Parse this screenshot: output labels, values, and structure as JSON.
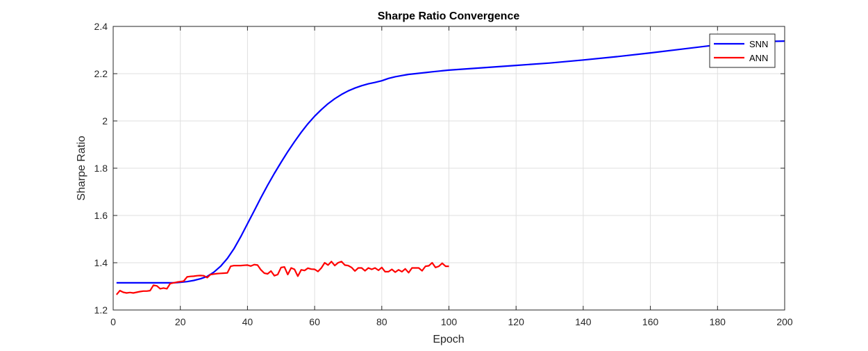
{
  "chart_data": {
    "type": "line",
    "title": "Sharpe Ratio Convergence",
    "xlabel": "Epoch",
    "ylabel": "Sharpe Ratio",
    "xlim": [
      0,
      200
    ],
    "ylim": [
      1.2,
      2.4
    ],
    "xticks": [
      0,
      20,
      40,
      60,
      80,
      100,
      120,
      140,
      160,
      180,
      200
    ],
    "yticks": [
      1.2,
      1.4,
      1.6,
      1.8,
      2.0,
      2.2,
      2.4
    ],
    "xtick_labels": [
      "0",
      "20",
      "40",
      "60",
      "80",
      "100",
      "120",
      "140",
      "160",
      "180",
      "200"
    ],
    "ytick_labels": [
      "1.2",
      "1.4",
      "1.6",
      "1.8",
      "2",
      "2.2",
      "2.4"
    ],
    "grid": true,
    "legend_position": "top-right",
    "series": [
      {
        "name": "SNN",
        "color": "#0000ff",
        "x": [
          1,
          5,
          10,
          15,
          18,
          20,
          22,
          24,
          26,
          28,
          30,
          32,
          34,
          36,
          38,
          40,
          42,
          44,
          46,
          48,
          50,
          52,
          54,
          56,
          58,
          60,
          62,
          64,
          66,
          68,
          70,
          72,
          74,
          76,
          78,
          80,
          82,
          84,
          86,
          88,
          90,
          95,
          100,
          110,
          120,
          130,
          140,
          150,
          160,
          170,
          180,
          190,
          200
        ],
        "y": [
          1.315,
          1.315,
          1.315,
          1.315,
          1.315,
          1.317,
          1.32,
          1.325,
          1.332,
          1.342,
          1.36,
          1.385,
          1.418,
          1.46,
          1.51,
          1.565,
          1.62,
          1.675,
          1.728,
          1.778,
          1.825,
          1.87,
          1.912,
          1.952,
          1.988,
          2.02,
          2.048,
          2.073,
          2.094,
          2.112,
          2.127,
          2.139,
          2.149,
          2.157,
          2.163,
          2.17,
          2.18,
          2.187,
          2.192,
          2.197,
          2.2,
          2.208,
          2.215,
          2.225,
          2.235,
          2.245,
          2.258,
          2.272,
          2.288,
          2.305,
          2.322,
          2.335,
          2.338
        ]
      },
      {
        "name": "ANN",
        "color": "#ff0000",
        "x": [
          1,
          2,
          3,
          4,
          5,
          6,
          7,
          8,
          9,
          10,
          11,
          12,
          13,
          14,
          15,
          16,
          17,
          18,
          19,
          20,
          21,
          22,
          23,
          24,
          25,
          26,
          27,
          28,
          29,
          30,
          31,
          32,
          33,
          34,
          35,
          36,
          37,
          38,
          39,
          40,
          41,
          42,
          43,
          44,
          45,
          46,
          47,
          48,
          49,
          50,
          51,
          52,
          53,
          54,
          55,
          56,
          57,
          58,
          59,
          60,
          61,
          62,
          63,
          64,
          65,
          66,
          67,
          68,
          69,
          70,
          71,
          72,
          73,
          74,
          75,
          76,
          77,
          78,
          79,
          80,
          81,
          82,
          83,
          84,
          85,
          86,
          87,
          88,
          89,
          90,
          91,
          92,
          93,
          94,
          95,
          96,
          97,
          98,
          99,
          100
        ],
        "y": [
          1.265,
          1.282,
          1.275,
          1.272,
          1.274,
          1.272,
          1.275,
          1.278,
          1.28,
          1.28,
          1.282,
          1.305,
          1.302,
          1.29,
          1.293,
          1.29,
          1.312,
          1.315,
          1.318,
          1.32,
          1.322,
          1.34,
          1.342,
          1.343,
          1.345,
          1.346,
          1.345,
          1.337,
          1.35,
          1.352,
          1.354,
          1.355,
          1.356,
          1.357,
          1.385,
          1.388,
          1.388,
          1.388,
          1.389,
          1.39,
          1.386,
          1.392,
          1.39,
          1.37,
          1.356,
          1.353,
          1.365,
          1.345,
          1.35,
          1.38,
          1.382,
          1.35,
          1.378,
          1.372,
          1.343,
          1.37,
          1.367,
          1.377,
          1.373,
          1.372,
          1.363,
          1.378,
          1.4,
          1.39,
          1.405,
          1.388,
          1.4,
          1.405,
          1.39,
          1.388,
          1.38,
          1.365,
          1.378,
          1.378,
          1.366,
          1.378,
          1.372,
          1.378,
          1.368,
          1.38,
          1.362,
          1.362,
          1.372,
          1.36,
          1.37,
          1.362,
          1.374,
          1.358,
          1.378,
          1.378,
          1.378,
          1.366,
          1.385,
          1.387,
          1.4,
          1.38,
          1.385,
          1.398,
          1.385,
          1.385
        ]
      }
    ]
  }
}
